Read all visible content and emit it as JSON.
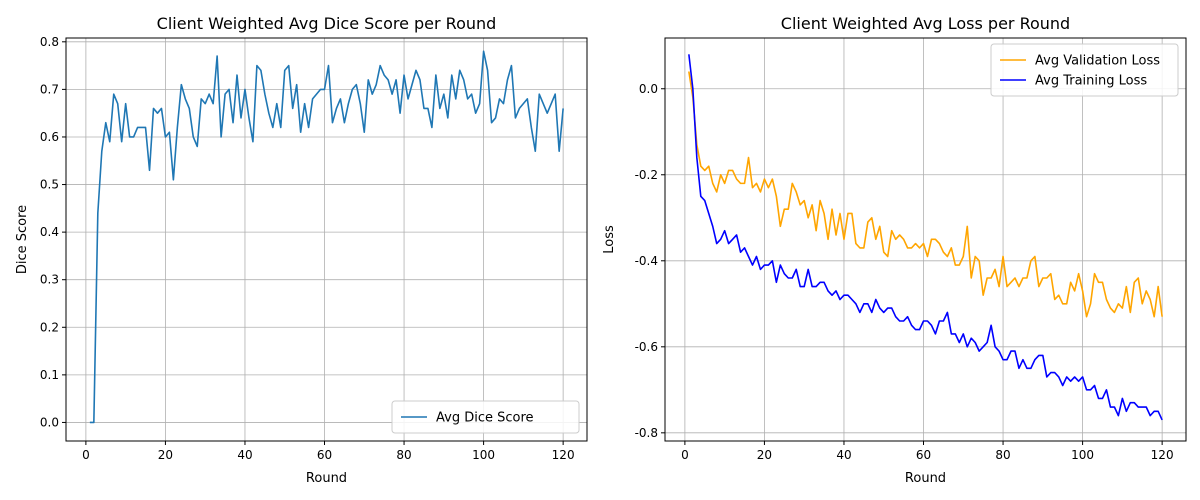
{
  "chart_data": [
    {
      "type": "line",
      "title": "Client Weighted Avg Dice Score per Round",
      "xlabel": "Round",
      "ylabel": "Dice Score",
      "xlim": [
        -5,
        126
      ],
      "ylim": [
        -0.039,
        0.808
      ],
      "xticks": [
        0,
        20,
        40,
        60,
        80,
        100,
        120
      ],
      "yticks": [
        0.0,
        0.1,
        0.2,
        0.3,
        0.4,
        0.5,
        0.6,
        0.7,
        0.8
      ],
      "ytick_decimals": 1,
      "grid": true,
      "legend_position": "lower-right",
      "series": [
        {
          "name": "Avg Dice Score",
          "color": "#1f77b4",
          "x_start": 1,
          "values": [
            0.0,
            0.0,
            0.44,
            0.57,
            0.63,
            0.59,
            0.69,
            0.67,
            0.59,
            0.67,
            0.6,
            0.6,
            0.62,
            0.62,
            0.62,
            0.53,
            0.66,
            0.65,
            0.66,
            0.6,
            0.61,
            0.51,
            0.62,
            0.71,
            0.68,
            0.66,
            0.6,
            0.58,
            0.68,
            0.67,
            0.69,
            0.67,
            0.77,
            0.6,
            0.69,
            0.7,
            0.63,
            0.73,
            0.64,
            0.7,
            0.64,
            0.59,
            0.75,
            0.74,
            0.69,
            0.65,
            0.62,
            0.67,
            0.62,
            0.74,
            0.75,
            0.66,
            0.71,
            0.61,
            0.67,
            0.62,
            0.68,
            0.69,
            0.7,
            0.7,
            0.75,
            0.63,
            0.66,
            0.68,
            0.63,
            0.67,
            0.7,
            0.71,
            0.67,
            0.61,
            0.72,
            0.69,
            0.71,
            0.75,
            0.73,
            0.72,
            0.69,
            0.72,
            0.65,
            0.73,
            0.68,
            0.71,
            0.74,
            0.72,
            0.66,
            0.66,
            0.62,
            0.73,
            0.66,
            0.69,
            0.64,
            0.73,
            0.68,
            0.74,
            0.72,
            0.68,
            0.69,
            0.65,
            0.67,
            0.78,
            0.74,
            0.63,
            0.64,
            0.68,
            0.67,
            0.72,
            0.75,
            0.64,
            0.66,
            0.67,
            0.68,
            0.62,
            0.57,
            0.69,
            0.67,
            0.65,
            0.67,
            0.69,
            0.57,
            0.66
          ]
        }
      ]
    },
    {
      "type": "line",
      "title": "Client Weighted Avg Loss per Round",
      "xlabel": "Round",
      "ylabel": "Loss",
      "xlim": [
        -5,
        126
      ],
      "ylim": [
        -0.819,
        0.118
      ],
      "xticks": [
        0,
        20,
        40,
        60,
        80,
        100,
        120
      ],
      "yticks": [
        -0.8,
        -0.6,
        -0.4,
        -0.2,
        0.0
      ],
      "ytick_decimals": 1,
      "grid": true,
      "legend_position": "top-right",
      "series": [
        {
          "name": "Avg Validation Loss",
          "color": "#ffa500",
          "x_start": 1,
          "values": [
            0.04,
            -0.02,
            -0.13,
            -0.18,
            -0.19,
            -0.18,
            -0.22,
            -0.24,
            -0.2,
            -0.22,
            -0.19,
            -0.19,
            -0.21,
            -0.22,
            -0.22,
            -0.16,
            -0.23,
            -0.22,
            -0.24,
            -0.21,
            -0.23,
            -0.21,
            -0.25,
            -0.32,
            -0.28,
            -0.28,
            -0.22,
            -0.24,
            -0.27,
            -0.26,
            -0.3,
            -0.27,
            -0.33,
            -0.26,
            -0.29,
            -0.35,
            -0.28,
            -0.34,
            -0.29,
            -0.35,
            -0.29,
            -0.29,
            -0.36,
            -0.37,
            -0.37,
            -0.31,
            -0.3,
            -0.35,
            -0.32,
            -0.38,
            -0.39,
            -0.33,
            -0.35,
            -0.34,
            -0.35,
            -0.37,
            -0.37,
            -0.36,
            -0.37,
            -0.36,
            -0.39,
            -0.35,
            -0.35,
            -0.36,
            -0.38,
            -0.39,
            -0.37,
            -0.41,
            -0.41,
            -0.39,
            -0.32,
            -0.44,
            -0.39,
            -0.4,
            -0.48,
            -0.44,
            -0.44,
            -0.42,
            -0.46,
            -0.39,
            -0.46,
            -0.45,
            -0.44,
            -0.46,
            -0.44,
            -0.44,
            -0.4,
            -0.39,
            -0.46,
            -0.44,
            -0.44,
            -0.43,
            -0.49,
            -0.48,
            -0.5,
            -0.5,
            -0.45,
            -0.47,
            -0.43,
            -0.47,
            -0.53,
            -0.5,
            -0.43,
            -0.45,
            -0.45,
            -0.49,
            -0.51,
            -0.52,
            -0.5,
            -0.51,
            -0.46,
            -0.52,
            -0.45,
            -0.44,
            -0.5,
            -0.47,
            -0.49,
            -0.53,
            -0.46,
            -0.53
          ]
        },
        {
          "name": "Avg Training Loss",
          "color": "#0000ff",
          "x_start": 1,
          "values": [
            0.08,
            0.0,
            -0.16,
            -0.25,
            -0.26,
            -0.29,
            -0.32,
            -0.36,
            -0.35,
            -0.33,
            -0.36,
            -0.35,
            -0.34,
            -0.38,
            -0.37,
            -0.39,
            -0.41,
            -0.39,
            -0.42,
            -0.41,
            -0.41,
            -0.4,
            -0.45,
            -0.41,
            -0.43,
            -0.44,
            -0.44,
            -0.42,
            -0.46,
            -0.46,
            -0.42,
            -0.46,
            -0.46,
            -0.45,
            -0.45,
            -0.47,
            -0.48,
            -0.47,
            -0.49,
            -0.48,
            -0.48,
            -0.49,
            -0.5,
            -0.52,
            -0.5,
            -0.5,
            -0.52,
            -0.49,
            -0.51,
            -0.52,
            -0.51,
            -0.51,
            -0.53,
            -0.54,
            -0.54,
            -0.53,
            -0.55,
            -0.56,
            -0.56,
            -0.54,
            -0.54,
            -0.55,
            -0.57,
            -0.54,
            -0.54,
            -0.52,
            -0.57,
            -0.57,
            -0.59,
            -0.57,
            -0.6,
            -0.58,
            -0.59,
            -0.61,
            -0.6,
            -0.59,
            -0.55,
            -0.6,
            -0.61,
            -0.63,
            -0.63,
            -0.61,
            -0.61,
            -0.65,
            -0.63,
            -0.65,
            -0.65,
            -0.63,
            -0.62,
            -0.62,
            -0.67,
            -0.66,
            -0.66,
            -0.67,
            -0.69,
            -0.67,
            -0.68,
            -0.67,
            -0.68,
            -0.67,
            -0.7,
            -0.7,
            -0.69,
            -0.72,
            -0.72,
            -0.7,
            -0.74,
            -0.74,
            -0.76,
            -0.72,
            -0.75,
            -0.73,
            -0.73,
            -0.74,
            -0.74,
            -0.74,
            -0.76,
            -0.75,
            -0.75,
            -0.77
          ]
        }
      ]
    }
  ]
}
